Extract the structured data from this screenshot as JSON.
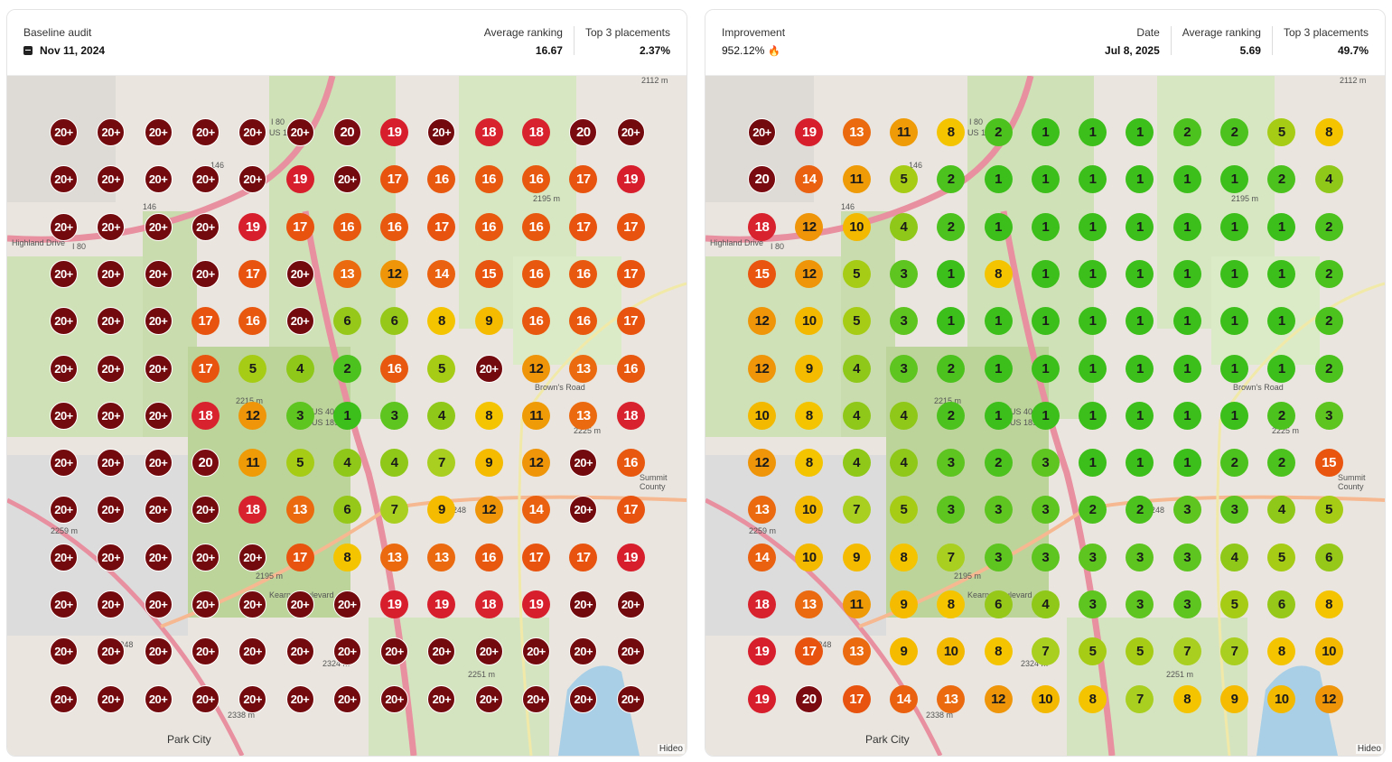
{
  "left": {
    "label": "Baseline audit",
    "date": "Nov 11, 2024",
    "stats": [
      {
        "label": "Average ranking",
        "value": "16.67"
      },
      {
        "label": "Top 3 placements",
        "value": "2.37%"
      }
    ],
    "grid": [
      [
        "20+",
        "20+",
        "20+",
        "20+",
        "20+",
        "20+",
        "20",
        "19",
        "20+",
        "18",
        "18",
        "20",
        "20+"
      ],
      [
        "20+",
        "20+",
        "20+",
        "20+",
        "20+",
        "19",
        "20+",
        "17",
        "16",
        "16",
        "16",
        "17",
        "19"
      ],
      [
        "20+",
        "20+",
        "20+",
        "20+",
        "19",
        "17",
        "16",
        "16",
        "17",
        "16",
        "16",
        "17",
        "17"
      ],
      [
        "20+",
        "20+",
        "20+",
        "20+",
        "17",
        "20+",
        "13",
        "12",
        "14",
        "15",
        "16",
        "16",
        "17"
      ],
      [
        "20+",
        "20+",
        "20+",
        "17",
        "16",
        "20+",
        "6",
        "6",
        "8",
        "9",
        "16",
        "16",
        "17"
      ],
      [
        "20+",
        "20+",
        "20+",
        "17",
        "5",
        "4",
        "2",
        "16",
        "5",
        "20+",
        "12",
        "13",
        "16"
      ],
      [
        "20+",
        "20+",
        "20+",
        "18",
        "12",
        "3",
        "1",
        "3",
        "4",
        "8",
        "11",
        "13",
        "18"
      ],
      [
        "20+",
        "20+",
        "20+",
        "20",
        "11",
        "5",
        "4",
        "4",
        "7",
        "9",
        "12",
        "20+",
        "16"
      ],
      [
        "20+",
        "20+",
        "20+",
        "20+",
        "18",
        "13",
        "6",
        "7",
        "9",
        "12",
        "14",
        "20+",
        "17"
      ],
      [
        "20+",
        "20+",
        "20+",
        "20+",
        "20+",
        "17",
        "8",
        "13",
        "13",
        "16",
        "17",
        "17",
        "19"
      ],
      [
        "20+",
        "20+",
        "20+",
        "20+",
        "20+",
        "20+",
        "20+",
        "19",
        "19",
        "18",
        "19",
        "20+",
        "20+"
      ],
      [
        "20+",
        "20+",
        "20+",
        "20+",
        "20+",
        "20+",
        "20+",
        "20+",
        "20+",
        "20+",
        "20+",
        "20+",
        "20+"
      ],
      [
        "20+",
        "20+",
        "20+",
        "20+",
        "20+",
        "20+",
        "20+",
        "20+",
        "20+",
        "20+",
        "20+",
        "20+",
        "20+"
      ]
    ]
  },
  "right": {
    "label": "Improvement",
    "improvement": "952.12%",
    "flame_icon": "flame-icon",
    "stats": [
      {
        "label": "Date",
        "value": "Jul 8, 2025"
      },
      {
        "label": "Average ranking",
        "value": "5.69"
      },
      {
        "label": "Top 3 placements",
        "value": "49.7%"
      }
    ],
    "grid": [
      [
        "20+",
        "19",
        "13",
        "11",
        "8",
        "2",
        "1",
        "1",
        "1",
        "2",
        "2",
        "5",
        "8"
      ],
      [
        "20",
        "14",
        "11",
        "5",
        "2",
        "1",
        "1",
        "1",
        "1",
        "1",
        "1",
        "2",
        "4"
      ],
      [
        "18",
        "12",
        "10",
        "4",
        "2",
        "1",
        "1",
        "1",
        "1",
        "1",
        "1",
        "1",
        "2"
      ],
      [
        "15",
        "12",
        "5",
        "3",
        "1",
        "8",
        "1",
        "1",
        "1",
        "1",
        "1",
        "1",
        "2"
      ],
      [
        "12",
        "10",
        "5",
        "3",
        "1",
        "1",
        "1",
        "1",
        "1",
        "1",
        "1",
        "1",
        "2"
      ],
      [
        "12",
        "9",
        "4",
        "3",
        "2",
        "1",
        "1",
        "1",
        "1",
        "1",
        "1",
        "1",
        "2"
      ],
      [
        "10",
        "8",
        "4",
        "4",
        "2",
        "1",
        "1",
        "1",
        "1",
        "1",
        "1",
        "2",
        "3"
      ],
      [
        "12",
        "8",
        "4",
        "4",
        "3",
        "2",
        "3",
        "1",
        "1",
        "1",
        "2",
        "2",
        "15"
      ],
      [
        "13",
        "10",
        "7",
        "5",
        "3",
        "3",
        "3",
        "2",
        "2",
        "3",
        "3",
        "4",
        "5"
      ],
      [
        "14",
        "10",
        "9",
        "8",
        "7",
        "3",
        "3",
        "3",
        "3",
        "3",
        "4",
        "5",
        "6"
      ],
      [
        "18",
        "13",
        "11",
        "9",
        "8",
        "6",
        "4",
        "3",
        "3",
        "3",
        "5",
        "6",
        "8"
      ],
      [
        "19",
        "17",
        "13",
        "9",
        "10",
        "8",
        "7",
        "5",
        "5",
        "7",
        "7",
        "8",
        "10"
      ],
      [
        "19",
        "20",
        "17",
        "14",
        "13",
        "12",
        "10",
        "8",
        "7",
        "8",
        "9",
        "10",
        "12"
      ]
    ]
  },
  "map_labels": {
    "i80": "I 80",
    "us189": "US 189",
    "us40": "US 40",
    "us189b": "US 189",
    "i80b": "I 80",
    "elev_2112": "2112 m",
    "elev_2195": "2195 m",
    "elev_2215": "2215 m",
    "elev_2225": "2225 m",
    "elev_2259": "2259 m",
    "elev_2195b": "2195 m",
    "elev_2324": "2324 m",
    "elev_2251": "2251 m",
    "elev_2338": "2338 m",
    "road_146": "146",
    "road_146b": "146",
    "highland": "Highland Drive",
    "browns": "Brown's Road",
    "kearns": "Kearns Boulevard",
    "summit": "Summit County",
    "park_city": "Park City",
    "ut248": "UT 248",
    "route_248": "248",
    "hideo": "Hideo"
  },
  "colors": {
    "1": "#3cbf1a",
    "2": "#4cc21e",
    "3": "#5ec420",
    "4": "#8fc818",
    "5": "#a6cc16",
    "6": "#96c81a",
    "7": "#a9cf20",
    "8": "#f5c400",
    "9": "#f5bb00",
    "10": "#f3b800",
    "11": "#ef9a07",
    "12": "#ee950a",
    "13": "#eb6a10",
    "14": "#ea6110",
    "15": "#e9540f",
    "16": "#e8580f",
    "17": "#e8540f",
    "18": "#d8232e",
    "19": "#d71e2d",
    "20": "#7a0b10",
    "20+": "#720a0e"
  }
}
